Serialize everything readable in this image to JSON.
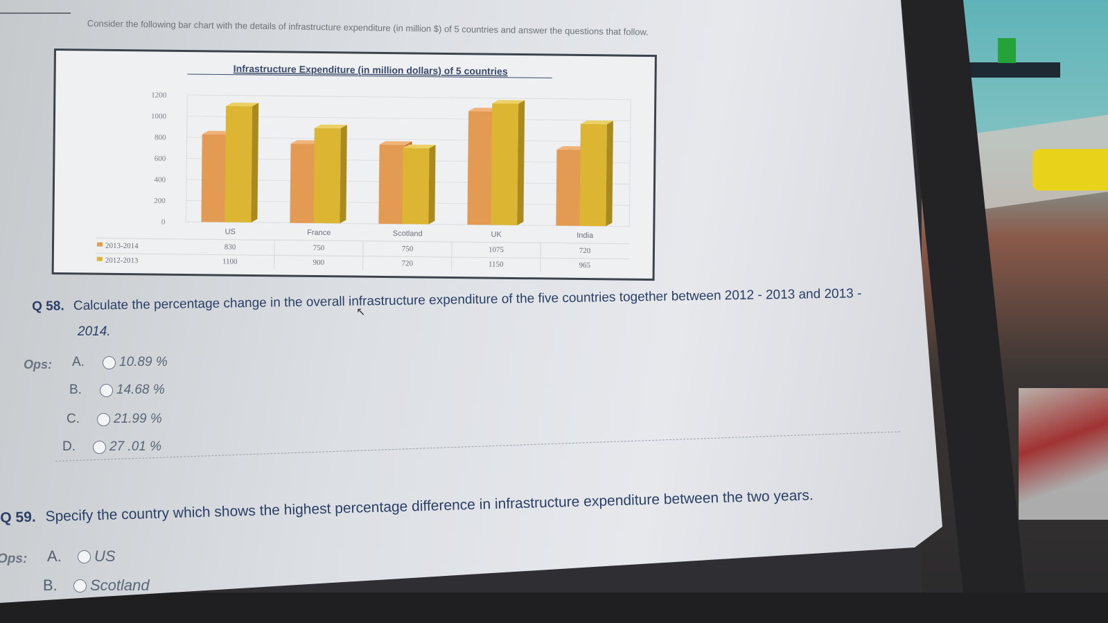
{
  "intro": "Consider the following bar chart with the details of infrastructure expenditure (in million $) of 5 countries and answer the questions that follow.",
  "colors": {
    "series_2013_2014": "#e39a52",
    "series_2012_2013": "#dcb533",
    "question_text": "#2a3f66"
  },
  "chart_data": {
    "type": "bar",
    "title": "Infrastructure Expenditure (in million dollars) of 5 countries",
    "categories": [
      "US",
      "France",
      "Scotland",
      "UK",
      "India"
    ],
    "series": [
      {
        "name": "2013-2014",
        "values": [
          830,
          750,
          750,
          1075,
          720
        ]
      },
      {
        "name": "2012-2013",
        "values": [
          1100,
          900,
          720,
          1150,
          965
        ]
      }
    ],
    "yticks": [
      "1200",
      "1000",
      "800",
      "600",
      "400",
      "200",
      "0"
    ],
    "ylim": [
      0,
      1200
    ],
    "legend": "data-table-left",
    "grid": true
  },
  "q58": {
    "number": "Q 58.",
    "text_line1": "Calculate the percentage change in the overall infrastructure expenditure of the five countries together between 2012 - 2013 and 2013 -",
    "text_line2": "2014.",
    "ops_label": "Ops:",
    "options": [
      {
        "letter": "A.",
        "text": "10.89 %"
      },
      {
        "letter": "B.",
        "text": "14.68 %"
      },
      {
        "letter": "C.",
        "text": "21.99 %"
      },
      {
        "letter": "D.",
        "text": "27 .01 %"
      }
    ]
  },
  "q59": {
    "number": "Q 59.",
    "text": "Specify the country which shows the highest percentage difference in infrastructure expenditure between the two years.",
    "ops_label": "Ops:",
    "options": [
      {
        "letter": "A.",
        "text": "US"
      },
      {
        "letter": "B.",
        "text": "Scotland"
      }
    ]
  }
}
